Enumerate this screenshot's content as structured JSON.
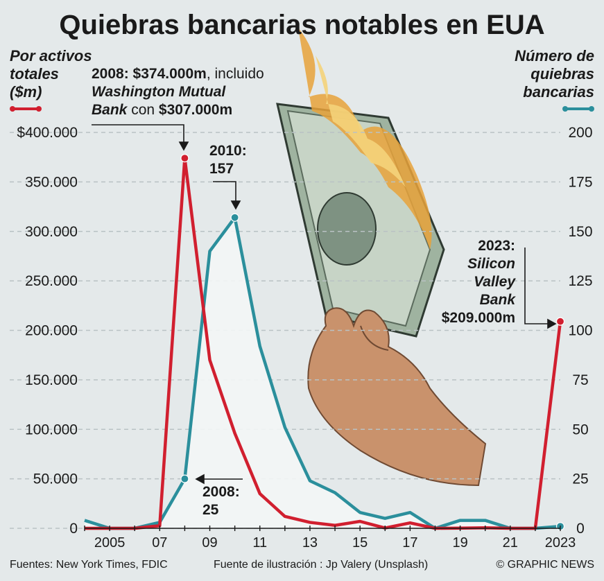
{
  "title": "Quiebras bancarias notables en EUA",
  "left_axis_title": [
    "Por activos",
    "totales",
    "($m)"
  ],
  "right_axis_title": [
    "Número de",
    "quiebras",
    "bancarias"
  ],
  "annotations": {
    "peak_assets": {
      "line1_bold": "2008: $374.000m",
      "line1_rest": ", incluido",
      "line2_italic": "Washington Mutual",
      "line3_italic": "Bank",
      "line3_rest": " con ",
      "line3_bold": "$307.000m"
    },
    "peak_count": {
      "line1": "2010:",
      "line2": "157"
    },
    "count_2008": {
      "line1": "2008:",
      "line2": "25"
    },
    "svb": {
      "line1": "2023:",
      "line2": "Silicon",
      "line3": "Valley",
      "line4": "Bank",
      "line5": "$209.000m"
    }
  },
  "footer": {
    "sources": "Fuentes: New York Times, FDIC",
    "illustration": "Fuente de ilustración : Jp Valery (Unsplash)",
    "credit": "© GRAPHIC NEWS"
  },
  "chart_data": {
    "type": "line",
    "x": [
      2004,
      2005,
      2006,
      2007,
      2008,
      2009,
      2010,
      2011,
      2012,
      2013,
      2014,
      2015,
      2016,
      2017,
      2018,
      2019,
      2020,
      2021,
      2022,
      2023
    ],
    "x_tick_labels": [
      "2005",
      "07",
      "09",
      "11",
      "13",
      "15",
      "17",
      "19",
      "21",
      "2023"
    ],
    "x_tick_values": [
      2005,
      2007,
      2009,
      2011,
      2013,
      2015,
      2017,
      2019,
      2021,
      2023
    ],
    "series": [
      {
        "axis": "left",
        "color": "#d11f2f",
        "values": [
          0,
          0,
          0,
          2600,
          374000,
          170000,
          96000,
          35000,
          12000,
          6000,
          3000,
          7000,
          300,
          5500,
          0,
          200,
          500,
          0,
          0,
          209000
        ]
      },
      {
        "axis": "right",
        "color": "#2b8f9c",
        "values": [
          4,
          0,
          0,
          3,
          25,
          140,
          157,
          92,
          51,
          24,
          18,
          8,
          5,
          8,
          0,
          4,
          4,
          0,
          0,
          1
        ]
      }
    ],
    "y_left": {
      "lim": [
        0,
        400000
      ],
      "ticks": [
        0,
        50000,
        100000,
        150000,
        200000,
        250000,
        300000,
        350000,
        400000
      ],
      "tick_labels": [
        "0",
        "50.000",
        "100.000",
        "150.000",
        "200.000",
        "250.000",
        "300.000",
        "350.000",
        "$400.000"
      ]
    },
    "y_right": {
      "lim": [
        0,
        200
      ],
      "ticks": [
        0,
        25,
        50,
        75,
        100,
        125,
        150,
        175,
        200
      ],
      "tick_labels": [
        "0",
        "25",
        "50",
        "75",
        "100",
        "125",
        "150",
        "175",
        "200"
      ]
    },
    "highlight_points": [
      {
        "series": 0,
        "x": 2008
      },
      {
        "series": 0,
        "x": 2023
      },
      {
        "series": 1,
        "x": 2008
      },
      {
        "series": 1,
        "x": 2010
      },
      {
        "series": 1,
        "x": 2023
      }
    ],
    "grid": true
  }
}
